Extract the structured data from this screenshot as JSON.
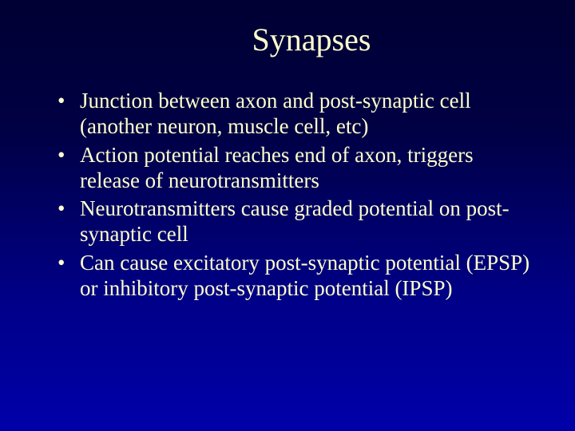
{
  "slide": {
    "title": "Synapses",
    "title_color": "#ffffcc",
    "title_fontsize": 40,
    "bullet_color": "#ffffcc",
    "bullet_fontsize": 27,
    "background_gradient_top": "#000033",
    "background_gradient_bottom": "#0000aa",
    "bullets": [
      "Junction between axon and post-synaptic cell (another neuron, muscle cell, etc)",
      "Action potential reaches end of axon, triggers release of neurotransmitters",
      "Neurotransmitters cause graded potential on post-synaptic cell",
      "Can cause excitatory post-synaptic potential (EPSP) or inhibitory post-synaptic potential (IPSP)"
    ]
  }
}
